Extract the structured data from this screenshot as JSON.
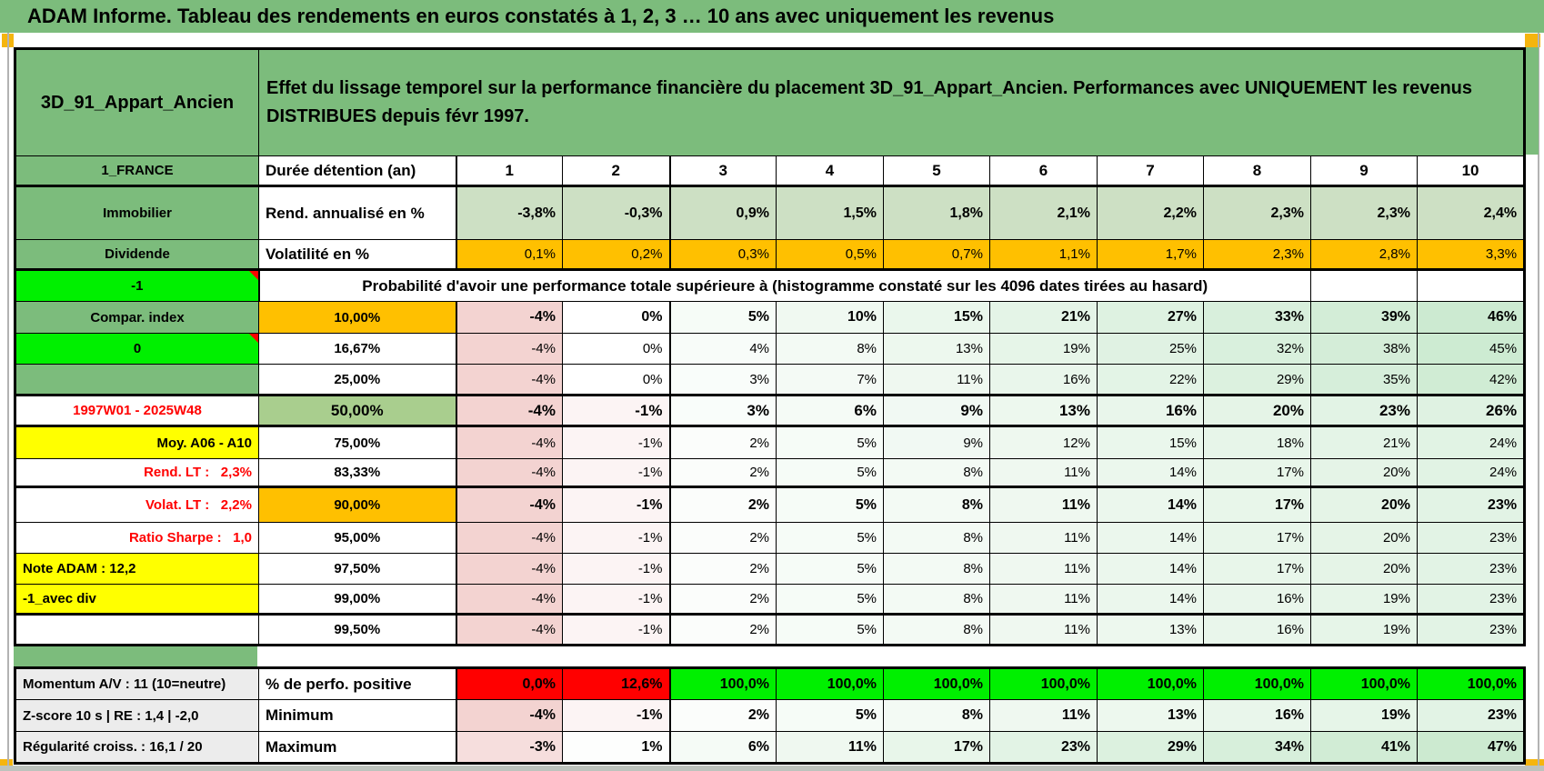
{
  "title": "ADAM Informe. Tableau des rendements en euros constatés à 1, 2, 3 … 10 ans avec uniquement les revenus",
  "header": {
    "asset_name": "3D_91_Appart_Ancien",
    "description": "Effet du lissage temporel sur la performance financière du placement 3D_91_Appart_Ancien. Performances avec UNIQUEMENT les revenus DISTRIBUES depuis févr 1997."
  },
  "colors": {
    "header_green": "#7CBC7C",
    "bright_green": "#00F000",
    "orange": "#FFC000",
    "olive_green": "#A9CE8E",
    "yellow": "#FFFF00",
    "label_gray": "#ECECEC",
    "red": "#FF0000",
    "pos_green": "#00F000",
    "flat_green": "#CDE0C4",
    "red_text": "#FF0000",
    "marker_orange": "#F5B50E"
  },
  "columns": [
    "1",
    "2",
    "3",
    "4",
    "5",
    "6",
    "7",
    "8",
    "9",
    "10"
  ],
  "table": {
    "rows": [
      {
        "kind": "head"
      },
      {
        "kind": "cols",
        "left": {
          "t": "1_FRANCE",
          "bg": "green"
        },
        "mid": {
          "t": "Durée détention (an)"
        },
        "thickBottom": true
      },
      {
        "kind": "vals",
        "left": {
          "t": "Immobilier",
          "bg": "green"
        },
        "mid": {
          "t": "Rend. annualisé en %"
        },
        "vals": [
          "-3,8%",
          "-0,3%",
          "0,9%",
          "1,5%",
          "1,8%",
          "2,1%",
          "2,2%",
          "2,3%",
          "2,3%",
          "2,4%"
        ],
        "vstyle": "flat",
        "bold": true
      },
      {
        "kind": "vals",
        "left": {
          "t": "Dividende",
          "bg": "green"
        },
        "mid": {
          "t": "Volatilité en %"
        },
        "vals": [
          "0,1%",
          "0,2%",
          "0,3%",
          "0,5%",
          "0,7%",
          "1,1%",
          "1,7%",
          "2,3%",
          "2,8%",
          "3,3%"
        ],
        "vstyle": "orange",
        "thickBottom": true
      },
      {
        "kind": "merged",
        "left": {
          "t": "-1",
          "bg": "bright",
          "comment": true
        },
        "text": "Probabilité d'avoir une performance totale supérieure à (histogramme constaté sur les 4096 dates tirées au hasard)"
      },
      {
        "kind": "vals",
        "left": {
          "t": "Compar. index",
          "bg": "green"
        },
        "mid": {
          "t": "10,00%",
          "bg": "orange",
          "pct": true
        },
        "vals": [
          "-4%",
          "0%",
          "5%",
          "10%",
          "15%",
          "21%",
          "27%",
          "33%",
          "39%",
          "46%"
        ],
        "vstyle": "scale",
        "bold": true
      },
      {
        "kind": "vals",
        "left": {
          "t": "0",
          "bg": "bright",
          "comment": true
        },
        "mid": {
          "t": "16,67%",
          "pct": true
        },
        "vals": [
          "-4%",
          "0%",
          "4%",
          "8%",
          "13%",
          "19%",
          "25%",
          "32%",
          "38%",
          "45%"
        ],
        "vstyle": "scale"
      },
      {
        "kind": "vals",
        "left": {
          "t": "",
          "bg": "green"
        },
        "mid": {
          "t": "25,00%",
          "pct": true
        },
        "vals": [
          "-4%",
          "0%",
          "3%",
          "7%",
          "11%",
          "16%",
          "22%",
          "29%",
          "35%",
          "42%"
        ],
        "vstyle": "scale"
      },
      {
        "kind": "vals",
        "left": {
          "t": "1997W01 - 2025W48",
          "fg": "red"
        },
        "mid": {
          "t": "50,00%",
          "bg": "olive",
          "pct": true,
          "big": true
        },
        "vals": [
          "-4%",
          "-1%",
          "3%",
          "6%",
          "9%",
          "13%",
          "16%",
          "20%",
          "23%",
          "26%"
        ],
        "vstyle": "scale",
        "bold": true,
        "big": true,
        "thickTop": true,
        "thickBottom": true
      },
      {
        "kind": "vals",
        "left": {
          "t": "Moy. A06 - A10",
          "bg": "yellow",
          "align": "right"
        },
        "mid": {
          "t": "75,00%",
          "pct": true
        },
        "vals": [
          "-4%",
          "-1%",
          "2%",
          "5%",
          "9%",
          "12%",
          "15%",
          "18%",
          "21%",
          "24%"
        ],
        "vstyle": "scale"
      },
      {
        "kind": "vals",
        "left": {
          "t": "Rend. LT :   2,3%",
          "fg": "red",
          "align": "right"
        },
        "mid": {
          "t": "83,33%",
          "pct": true
        },
        "vals": [
          "-4%",
          "-1%",
          "2%",
          "5%",
          "8%",
          "11%",
          "14%",
          "17%",
          "20%",
          "24%"
        ],
        "vstyle": "scale"
      },
      {
        "kind": "vals",
        "left": {
          "t": "Volat. LT :   2,2%",
          "fg": "red",
          "align": "right"
        },
        "mid": {
          "t": "90,00%",
          "bg": "orange",
          "pct": true
        },
        "vals": [
          "-4%",
          "-1%",
          "2%",
          "5%",
          "8%",
          "11%",
          "14%",
          "17%",
          "20%",
          "23%"
        ],
        "vstyle": "scale",
        "bold": true,
        "thickTop": true
      },
      {
        "kind": "vals",
        "left": {
          "t": "Ratio Sharpe :   1,0",
          "fg": "red",
          "align": "right"
        },
        "mid": {
          "t": "95,00%",
          "pct": true
        },
        "vals": [
          "-4%",
          "-1%",
          "2%",
          "5%",
          "8%",
          "11%",
          "14%",
          "17%",
          "20%",
          "23%"
        ],
        "vstyle": "scale"
      },
      {
        "kind": "vals",
        "left": {
          "t": "Note ADAM : 12,2",
          "bg": "yellow",
          "align": "left"
        },
        "mid": {
          "t": "97,50%",
          "pct": true
        },
        "vals": [
          "-4%",
          "-1%",
          "2%",
          "5%",
          "8%",
          "11%",
          "14%",
          "17%",
          "20%",
          "23%"
        ],
        "vstyle": "scale"
      },
      {
        "kind": "vals",
        "left": {
          "t": "-1_avec div",
          "bg": "yellow",
          "align": "left"
        },
        "mid": {
          "t": "99,00%",
          "pct": true
        },
        "vals": [
          "-4%",
          "-1%",
          "2%",
          "5%",
          "8%",
          "11%",
          "14%",
          "16%",
          "19%",
          "23%"
        ],
        "vstyle": "scale"
      },
      {
        "kind": "vals",
        "left": {
          "t": ""
        },
        "mid": {
          "t": "99,50%",
          "pct": true
        },
        "vals": [
          "-4%",
          "-1%",
          "2%",
          "5%",
          "8%",
          "11%",
          "13%",
          "16%",
          "19%",
          "23%"
        ],
        "vstyle": "scale",
        "thickTop": true
      }
    ]
  },
  "summary": {
    "rows": [
      {
        "kind": "vals",
        "left": {
          "t": "Momentum A/V : 11 (10=neutre)",
          "bg": "gray",
          "align": "left"
        },
        "mid": {
          "t": "% de perfo. positive"
        },
        "vals": [
          "0,0%",
          "12,6%",
          "100,0%",
          "100,0%",
          "100,0%",
          "100,0%",
          "100,0%",
          "100,0%",
          "100,0%",
          "100,0%"
        ],
        "vstyle": "posneg",
        "bold": true
      },
      {
        "kind": "vals",
        "left": {
          "t": "Z-score 10 s | RE : 1,4 | -2,0",
          "bg": "gray",
          "align": "left"
        },
        "mid": {
          "t": "Minimum"
        },
        "vals": [
          "-4%",
          "-1%",
          "2%",
          "5%",
          "8%",
          "11%",
          "13%",
          "16%",
          "19%",
          "23%"
        ],
        "vstyle": "scale",
        "bold": true
      },
      {
        "kind": "vals",
        "left": {
          "t": "Régularité croiss. : 16,1 / 20",
          "bg": "gray",
          "align": "left"
        },
        "mid": {
          "t": "Maximum"
        },
        "vals": [
          "-3%",
          "1%",
          "6%",
          "11%",
          "17%",
          "23%",
          "29%",
          "34%",
          "41%",
          "47%"
        ],
        "vstyle": "scale",
        "bold": true
      }
    ]
  }
}
